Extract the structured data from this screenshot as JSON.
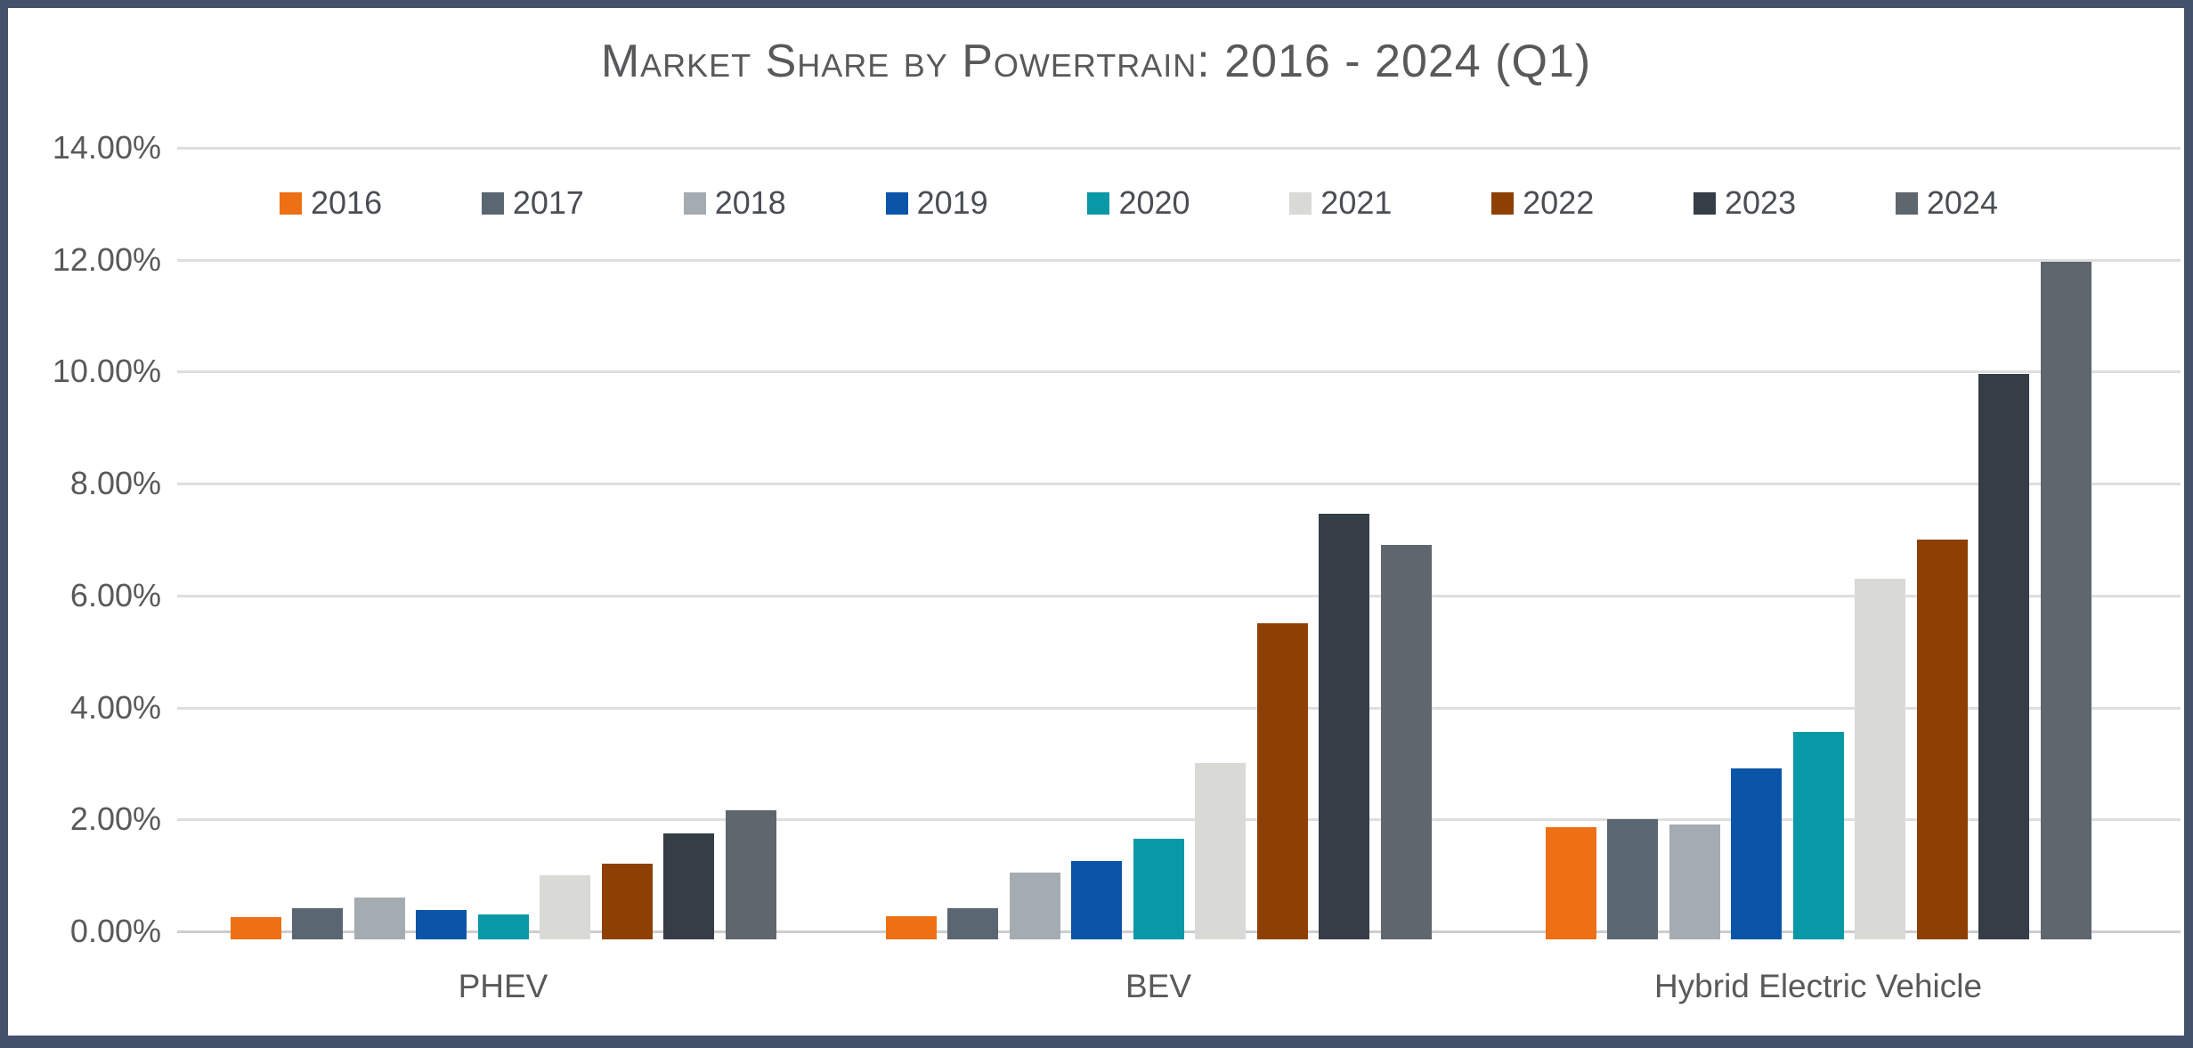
{
  "frame": {
    "border_color": "#43526A",
    "background": "#FFFFFF"
  },
  "chart_data": {
    "type": "bar",
    "title": "Market Share by Powertrain: 2016 - 2024 (Q1)",
    "categories": [
      "PHEV",
      "BEV",
      "Hybrid Electric Vehicle"
    ],
    "series": [
      {
        "name": "2016",
        "color": "#ED7014",
        "values": [
          0.4,
          0.42,
          2.0
        ]
      },
      {
        "name": "2017",
        "color": "#5A6672",
        "values": [
          0.55,
          0.55,
          2.15
        ]
      },
      {
        "name": "2018",
        "color": "#A4ABB1",
        "values": [
          0.75,
          1.2,
          2.05
        ]
      },
      {
        "name": "2019",
        "color": "#0B55A8",
        "values": [
          0.53,
          1.4,
          3.05
        ]
      },
      {
        "name": "2020",
        "color": "#0998A6",
        "values": [
          0.45,
          1.8,
          3.7
        ]
      },
      {
        "name": "2021",
        "color": "#D9DAD5",
        "values": [
          1.15,
          3.15,
          6.45
        ]
      },
      {
        "name": "2022",
        "color": "#8E4004",
        "values": [
          1.35,
          5.65,
          7.15
        ]
      },
      {
        "name": "2023",
        "color": "#353D47",
        "values": [
          1.9,
          7.6,
          10.1
        ]
      },
      {
        "name": "2024",
        "color": "#5E676E",
        "values": [
          2.3,
          7.05,
          12.1
        ]
      }
    ],
    "y_ticks": [
      "14.00%",
      "12.00%",
      "10.00%",
      "8.00%",
      "6.00%",
      "4.00%",
      "2.00%",
      "0.00%"
    ],
    "ylim": [
      0,
      14
    ],
    "xlabel": "",
    "ylabel": "",
    "grid": true,
    "legend_position": "top",
    "text_color": "#595959",
    "gridline_color": "#DEDEDE"
  },
  "layout_values": {
    "group_centers": [
      565,
      1301,
      2042
    ]
  }
}
